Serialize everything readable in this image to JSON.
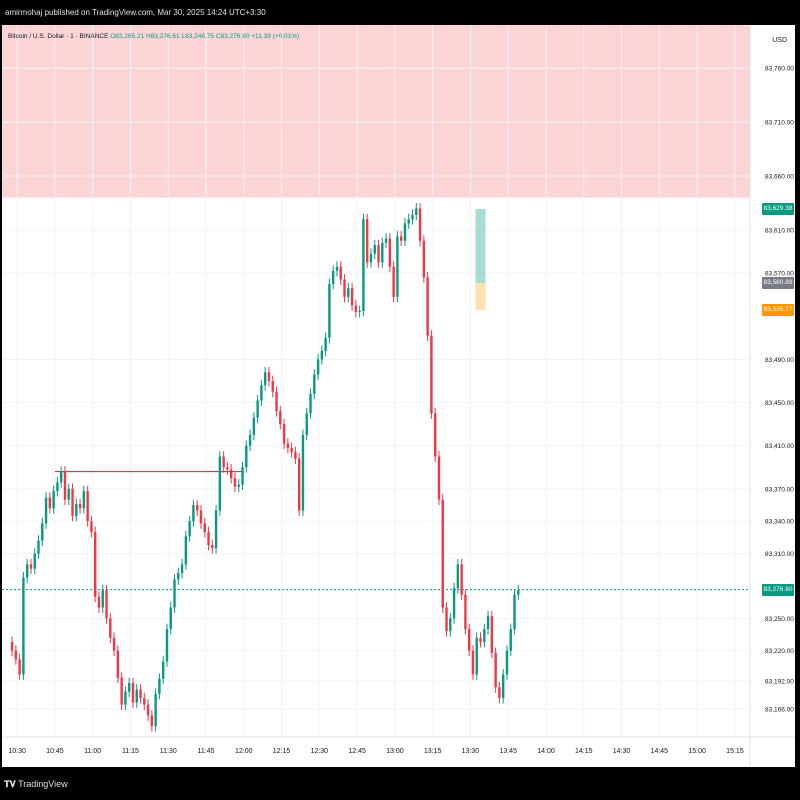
{
  "header": {
    "publisher_line": "amirmohaj published on TradingView.com, Mar 30, 2025 14:24 UTC+3:30"
  },
  "legend": {
    "symbol": "Bitcoin / U.S. Dollar · 1 · BINANCE",
    "open": "O83,265.21",
    "high": "H83,276.61",
    "low": "L83,248.75",
    "close": "C83,276.60",
    "change": "+11.39 (+0.01%)"
  },
  "currency": "USD",
  "price_tags": [
    {
      "label": "83,629.38",
      "value": 83629.38,
      "color": "#089981"
    },
    {
      "label": "83,560.89",
      "value": 83560.89,
      "color": "#787b86"
    },
    {
      "label": "83,535.77",
      "value": 83535.77,
      "color": "#ff9800"
    },
    {
      "label": "83,276.60",
      "value": 83276.6,
      "color": "#089981"
    }
  ],
  "footer": {
    "brand": "TradingView"
  },
  "chart_data": {
    "type": "candlestick",
    "ylim": [
      83140,
      83800
    ],
    "y_ticks": [
      {
        "label": "83,760.00",
        "value": 83760
      },
      {
        "label": "83,710.00",
        "value": 83710
      },
      {
        "label": "83,660.00",
        "value": 83660
      },
      {
        "label": "83,610.00",
        "value": 83610
      },
      {
        "label": "83,570.00",
        "value": 83570
      },
      {
        "label": "83,490.00",
        "value": 83490
      },
      {
        "label": "83,450.00",
        "value": 83450
      },
      {
        "label": "83,410.00",
        "value": 83410
      },
      {
        "label": "83,370.00",
        "value": 83370
      },
      {
        "label": "83,340.00",
        "value": 83340
      },
      {
        "label": "83,310.00",
        "value": 83310
      },
      {
        "label": "83,250.00",
        "value": 83250
      },
      {
        "label": "83,220.00",
        "value": 83220
      },
      {
        "label": "83,192.00",
        "value": 83192
      },
      {
        "label": "83,166.00",
        "value": 83166
      }
    ],
    "x_ticks": [
      "10:30",
      "10:45",
      "11:00",
      "11:15",
      "11:30",
      "11:45",
      "12:00",
      "12:15",
      "12:30",
      "12:45",
      "13:00",
      "13:15",
      "13:30",
      "13:45",
      "14:00",
      "14:15",
      "14:30",
      "14:45",
      "15:00",
      "15:15"
    ],
    "x_start": "10:30",
    "x_end": "15:15",
    "resistance_zone": {
      "low": 83640,
      "high": 83800
    },
    "horizontal_ray": {
      "value": 83386,
      "from": "10:45",
      "to": "12:00"
    },
    "position": {
      "entry": 83560.89,
      "target": 83629.38,
      "stop": 83535.77,
      "from": "13:32",
      "to": "13:36"
    },
    "last_price": 83276.6,
    "closes": [
      83220,
      83212,
      83198,
      83288,
      83300,
      83296,
      83310,
      83322,
      83338,
      83362,
      83352,
      83368,
      83376,
      83386,
      83360,
      83370,
      83345,
      83356,
      83352,
      83368,
      83340,
      83330,
      83270,
      83260,
      83276,
      83250,
      83232,
      83220,
      83195,
      83170,
      83182,
      83190,
      83172,
      83184,
      83176,
      83170,
      83160,
      83150,
      83180,
      83194,
      83210,
      83240,
      83260,
      83286,
      83292,
      83300,
      83326,
      83340,
      83355,
      83350,
      83338,
      83330,
      83318,
      83315,
      83350,
      83400,
      83390,
      83388,
      83380,
      83372,
      83374,
      83390,
      83410,
      83420,
      83436,
      83452,
      83466,
      83478,
      83470,
      83460,
      83442,
      83430,
      83412,
      83408,
      83404,
      83398,
      83350,
      83420,
      83440,
      83458,
      83476,
      83490,
      83498,
      83510,
      83560,
      83572,
      83576,
      83564,
      83548,
      83556,
      83540,
      83534,
      83535,
      83620,
      83580,
      83588,
      83596,
      83580,
      83598,
      83602,
      83576,
      83548,
      83604,
      83600,
      83616,
      83620,
      83624,
      83630,
      83600,
      83566,
      83512,
      83440,
      83400,
      83360,
      83260,
      83238,
      83250,
      83278,
      83300,
      83272,
      83240,
      83220,
      83198,
      83232,
      83228,
      83240,
      83252,
      83218,
      83186,
      83176,
      83198,
      83220,
      83240,
      83272,
      83276
    ]
  }
}
